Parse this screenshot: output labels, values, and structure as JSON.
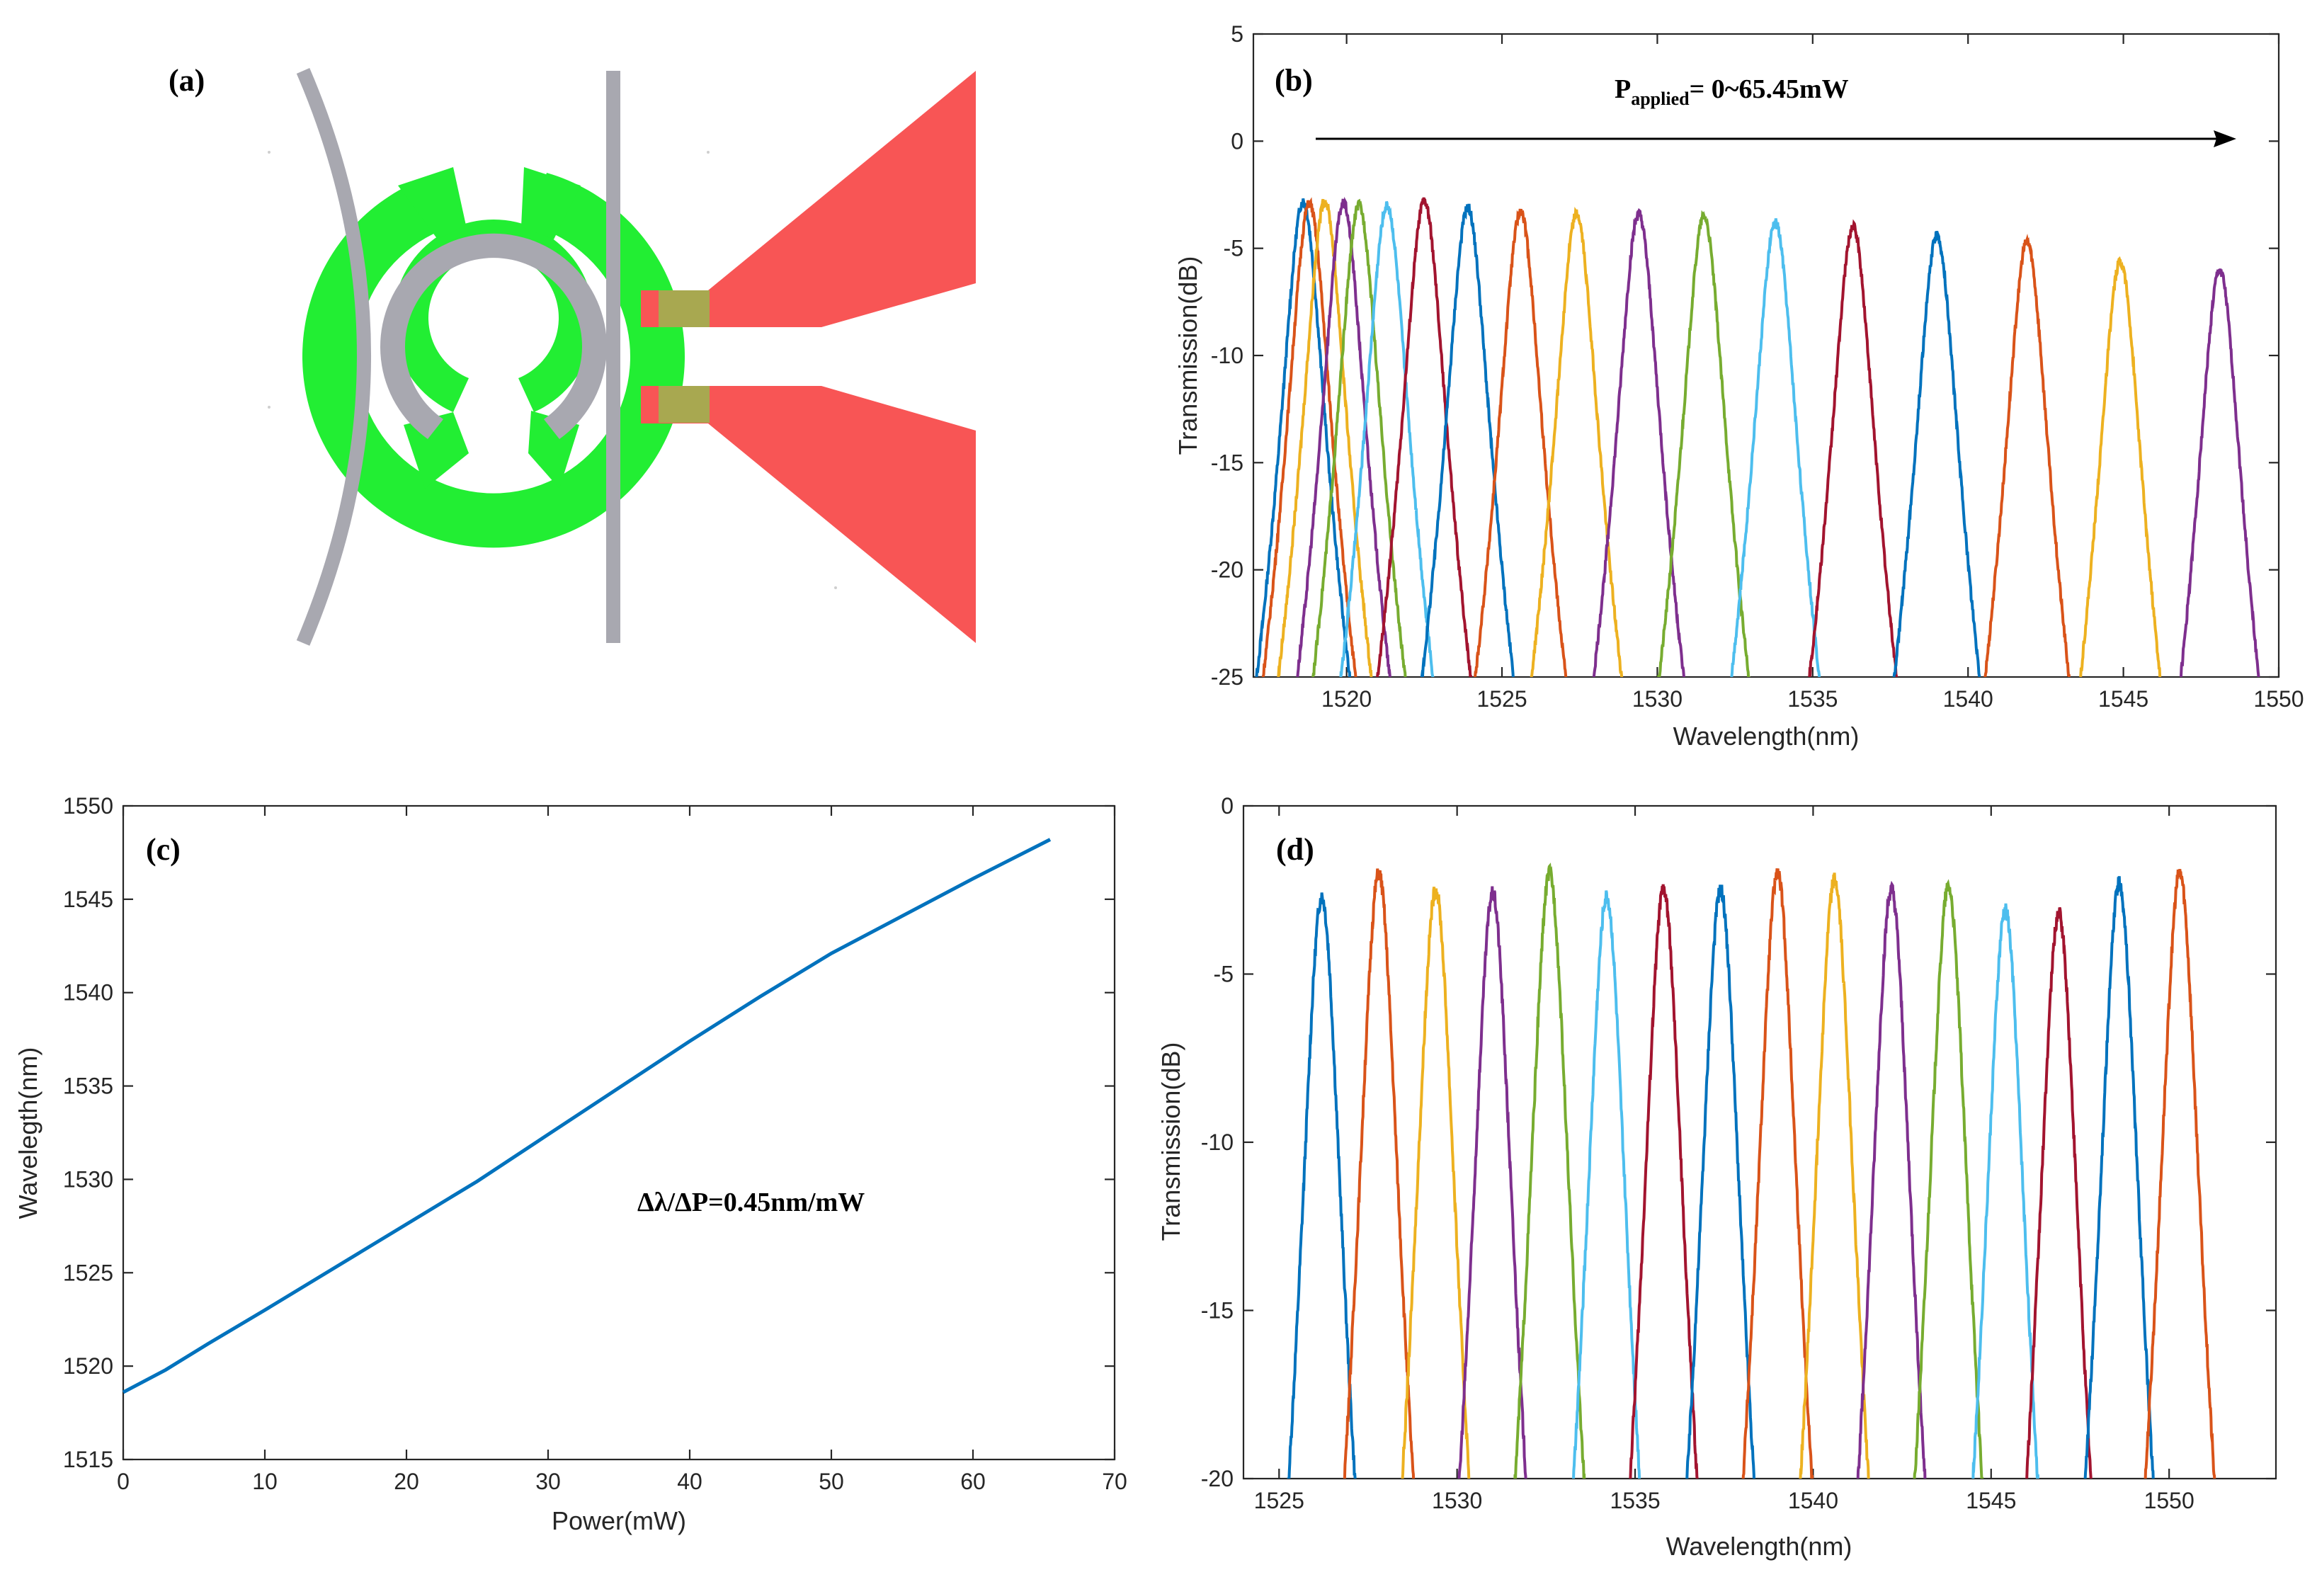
{
  "colors": [
    "#0072BD",
    "#D95319",
    "#EDB120",
    "#7E2F8E",
    "#77AC30",
    "#4DBEEE",
    "#A2142F"
  ],
  "panel_a": {
    "label": "(a)",
    "colors": {
      "waveguide": "#a8a8b0",
      "heater": "#22ee33",
      "pad": "#f85555",
      "via": "#a8a850"
    }
  },
  "chart_data": [
    {
      "id": "b",
      "type": "line",
      "panel_label": "(b)",
      "xlabel": "Wavelength(nm)",
      "ylabel": "Transmission(dB)",
      "xlim": [
        1517,
        1550
      ],
      "ylim": [
        -25,
        5
      ],
      "xticks": [
        1520,
        1525,
        1530,
        1535,
        1540,
        1545,
        1550
      ],
      "yticks": [
        5,
        0,
        -5,
        -10,
        -15,
        -20,
        -25
      ],
      "annotation": {
        "main": "P",
        "sub": "applied",
        "rest": "= 0~65.45mW"
      },
      "peaks": [
        {
          "center": 1518.6,
          "peak": -2.8
        },
        {
          "center": 1518.8,
          "peak": -2.9
        },
        {
          "center": 1519.3,
          "peak": -2.8
        },
        {
          "center": 1519.9,
          "peak": -2.9
        },
        {
          "center": 1520.4,
          "peak": -3.0
        },
        {
          "center": 1521.3,
          "peak": -3.0
        },
        {
          "center": 1522.5,
          "peak": -2.8
        },
        {
          "center": 1523.9,
          "peak": -3.1
        },
        {
          "center": 1525.6,
          "peak": -3.3
        },
        {
          "center": 1527.4,
          "peak": -3.4
        },
        {
          "center": 1529.4,
          "peak": -3.4
        },
        {
          "center": 1531.5,
          "peak": -3.5
        },
        {
          "center": 1533.8,
          "peak": -3.8
        },
        {
          "center": 1536.3,
          "peak": -4.0
        },
        {
          "center": 1539.0,
          "peak": -4.4
        },
        {
          "center": 1541.9,
          "peak": -4.7
        },
        {
          "center": 1544.9,
          "peak": -5.6
        },
        {
          "center": 1548.1,
          "peak": -6.0
        }
      ]
    },
    {
      "id": "c",
      "type": "line",
      "panel_label": "(c)",
      "xlabel": "Power(mW)",
      "ylabel": "Wavelegth(nm)",
      "xlim": [
        0,
        70
      ],
      "ylim": [
        1515,
        1550
      ],
      "xticks": [
        0,
        10,
        20,
        30,
        40,
        50,
        60,
        70
      ],
      "yticks": [
        1515,
        1520,
        1525,
        1530,
        1535,
        1540,
        1545,
        1550
      ],
      "annotation": "Δλ/ΔP=0.45nm/mW",
      "x": [
        0,
        3,
        6,
        10,
        15,
        20,
        25,
        30,
        35,
        40,
        45,
        50,
        55,
        60,
        65.45
      ],
      "y": [
        1518.6,
        1519.8,
        1521.2,
        1523.0,
        1525.3,
        1527.6,
        1529.9,
        1532.4,
        1534.9,
        1537.4,
        1539.8,
        1542.1,
        1544.1,
        1546.1,
        1548.2
      ]
    },
    {
      "id": "d",
      "type": "line",
      "panel_label": "(d)",
      "xlabel": "Wavelength(nm)",
      "ylabel": "Transmission(dB)",
      "xlim": [
        1524,
        1553
      ],
      "ylim": [
        -20,
        0
      ],
      "xticks": [
        1525,
        1530,
        1535,
        1540,
        1545,
        1550
      ],
      "yticks": [
        0,
        -5,
        -10,
        -15,
        -20
      ],
      "peaks": [
        {
          "center": 1526.2,
          "peak": -2.7
        },
        {
          "center": 1527.8,
          "peak": -2.0
        },
        {
          "center": 1529.4,
          "peak": -2.5
        },
        {
          "center": 1531.0,
          "peak": -2.6
        },
        {
          "center": 1532.6,
          "peak": -2.0
        },
        {
          "center": 1534.2,
          "peak": -2.7
        },
        {
          "center": 1535.8,
          "peak": -2.5
        },
        {
          "center": 1537.4,
          "peak": -2.5
        },
        {
          "center": 1539.0,
          "peak": -2.0
        },
        {
          "center": 1540.6,
          "peak": -2.2
        },
        {
          "center": 1542.2,
          "peak": -2.5
        },
        {
          "center": 1543.8,
          "peak": -2.4
        },
        {
          "center": 1545.4,
          "peak": -3.1
        },
        {
          "center": 1546.9,
          "peak": -3.2
        },
        {
          "center": 1548.6,
          "peak": -2.3
        },
        {
          "center": 1550.3,
          "peak": -2.0
        }
      ]
    }
  ]
}
